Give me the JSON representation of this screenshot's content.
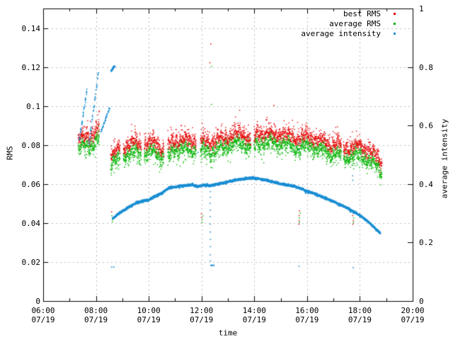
{
  "chart_data": {
    "type": "scatter",
    "title": "",
    "xlabel": "time",
    "ylabel": "RMS",
    "y2label": "average intensity",
    "grid": true,
    "colors": {
      "background": "#ffffff",
      "border": "#000000",
      "grid": "#b9b9b9",
      "text": "#000000",
      "best_rms": "#e60000",
      "average_rms": "#00b400",
      "average_intensity": "#1b8ed3"
    },
    "x_axis": {
      "date": "07/19",
      "range_hours": [
        6,
        20
      ],
      "major_ticks": [
        {
          "time": "06:00",
          "date": "07/19",
          "hour": 6
        },
        {
          "time": "08:00",
          "date": "07/19",
          "hour": 8
        },
        {
          "time": "10:00",
          "date": "07/19",
          "hour": 10
        },
        {
          "time": "12:00",
          "date": "07/19",
          "hour": 12
        },
        {
          "time": "14:00",
          "date": "07/19",
          "hour": 14
        },
        {
          "time": "16:00",
          "date": "07/19",
          "hour": 16
        },
        {
          "time": "18:00",
          "date": "07/19",
          "hour": 18
        },
        {
          "time": "20:00",
          "date": "07/19",
          "hour": 20
        }
      ],
      "minor_tick_hours": [
        7,
        9,
        11,
        13,
        15,
        17,
        19
      ]
    },
    "y_axis": {
      "label": "RMS",
      "min": 0,
      "max": 0.15,
      "ticks": [
        {
          "label": "0",
          "value": 0
        },
        {
          "label": "0.02",
          "value": 0.02
        },
        {
          "label": "0.04",
          "value": 0.04
        },
        {
          "label": "0.06",
          "value": 0.06
        },
        {
          "label": "0.08",
          "value": 0.08
        },
        {
          "label": "0.1",
          "value": 0.1
        },
        {
          "label": "0.12",
          "value": 0.12
        },
        {
          "label": "0.14",
          "value": 0.14
        }
      ]
    },
    "y2_axis": {
      "label": "average intensity",
      "min": 0,
      "max": 1,
      "ticks": [
        {
          "label": "1",
          "value": 1
        },
        {
          "label": "0.8",
          "value": 0.8
        },
        {
          "label": "0.6",
          "value": 0.6
        },
        {
          "label": "0.4",
          "value": 0.4
        },
        {
          "label": "0.2",
          "value": 0.2
        },
        {
          "label": "0",
          "value": 0
        }
      ]
    },
    "legend": [
      {
        "label": "best RMS",
        "series": "best_rms",
        "color": "#e60000"
      },
      {
        "label": "average RMS",
        "series": "average_rms",
        "color": "#00b400"
      },
      {
        "label": "average intensity",
        "series": "average_intensity",
        "color": "#1b8ed3"
      }
    ],
    "series": {
      "rms_band": {
        "axis": "y1",
        "red_offset": 0.0046,
        "spread": 0.0032,
        "segments": [
          [
            7.33,
            8.13
          ],
          [
            8.56,
            8.92
          ],
          [
            9.04,
            9.72
          ],
          [
            9.83,
            10.58
          ],
          [
            10.72,
            11.8
          ],
          [
            11.96,
            13.87
          ],
          [
            13.99,
            17.3
          ],
          [
            17.38,
            18.84
          ]
        ],
        "green_mean_anchors": [
          [
            7.35,
            0.0785
          ],
          [
            7.7,
            0.0795
          ],
          [
            7.95,
            0.081
          ],
          [
            8.12,
            0.0858
          ],
          [
            8.56,
            0.0712
          ],
          [
            8.8,
            0.0722
          ],
          [
            9.0,
            0.0735
          ],
          [
            9.2,
            0.0752
          ],
          [
            9.5,
            0.0768
          ],
          [
            9.75,
            0.0742
          ],
          [
            9.9,
            0.0752
          ],
          [
            10.15,
            0.0775
          ],
          [
            10.45,
            0.0742
          ],
          [
            10.65,
            0.0728
          ],
          [
            10.9,
            0.0772
          ],
          [
            11.2,
            0.0782
          ],
          [
            11.5,
            0.0772
          ],
          [
            11.8,
            0.0778
          ],
          [
            12.1,
            0.0772
          ],
          [
            12.4,
            0.0762
          ],
          [
            12.7,
            0.0782
          ],
          [
            13.0,
            0.0792
          ],
          [
            13.3,
            0.0812
          ],
          [
            13.6,
            0.0802
          ],
          [
            13.9,
            0.0788
          ],
          [
            14.2,
            0.0812
          ],
          [
            14.5,
            0.0818
          ],
          [
            14.8,
            0.0802
          ],
          [
            15.1,
            0.0812
          ],
          [
            15.4,
            0.0792
          ],
          [
            15.7,
            0.0782
          ],
          [
            16.0,
            0.0798
          ],
          [
            16.3,
            0.0785
          ],
          [
            16.6,
            0.0772
          ],
          [
            16.9,
            0.0752
          ],
          [
            17.15,
            0.0762
          ],
          [
            17.45,
            0.0735
          ],
          [
            17.7,
            0.0742
          ],
          [
            18.0,
            0.0752
          ],
          [
            18.2,
            0.0732
          ],
          [
            18.45,
            0.0712
          ],
          [
            18.65,
            0.0692
          ],
          [
            18.83,
            0.0662
          ]
        ]
      },
      "intensity_arc": {
        "axis": "y2",
        "anchors": [
          [
            8.63,
            0.282
          ],
          [
            8.8,
            0.295
          ],
          [
            9.0,
            0.307
          ],
          [
            9.25,
            0.321
          ],
          [
            9.5,
            0.334
          ],
          [
            9.75,
            0.341
          ],
          [
            10.0,
            0.346
          ],
          [
            10.2,
            0.356
          ],
          [
            10.5,
            0.369
          ],
          [
            10.75,
            0.386
          ],
          [
            11.0,
            0.39
          ],
          [
            11.3,
            0.394
          ],
          [
            11.6,
            0.398
          ],
          [
            11.85,
            0.392
          ],
          [
            12.1,
            0.396
          ],
          [
            12.35,
            0.395
          ],
          [
            12.6,
            0.4
          ],
          [
            12.85,
            0.404
          ],
          [
            13.1,
            0.41
          ],
          [
            13.4,
            0.415
          ],
          [
            13.7,
            0.419
          ],
          [
            13.95,
            0.421
          ],
          [
            14.2,
            0.417
          ],
          [
            14.5,
            0.412
          ],
          [
            14.8,
            0.405
          ],
          [
            15.1,
            0.399
          ],
          [
            15.4,
            0.395
          ],
          [
            15.7,
            0.387
          ],
          [
            16.0,
            0.376
          ],
          [
            16.3,
            0.366
          ],
          [
            16.6,
            0.355
          ],
          [
            16.9,
            0.344
          ],
          [
            17.2,
            0.331
          ],
          [
            17.5,
            0.319
          ],
          [
            17.8,
            0.304
          ],
          [
            18.1,
            0.286
          ],
          [
            18.35,
            0.268
          ],
          [
            18.6,
            0.247
          ],
          [
            18.78,
            0.231
          ]
        ]
      },
      "intensity_streaks": [
        {
          "from": [
            7.37,
            0.55
          ],
          "to": [
            7.66,
            0.721
          ]
        },
        {
          "from": [
            7.74,
            0.538
          ],
          "to": [
            8.09,
            0.78
          ]
        },
        {
          "from": [
            8.2,
            0.581
          ],
          "to": [
            8.52,
            0.661
          ]
        },
        {
          "from": [
            8.57,
            0.787
          ],
          "to": [
            8.71,
            0.804
          ]
        }
      ],
      "intensity_extra_points": [
        [
          8.6,
          0.116
        ],
        [
          8.68,
          0.116
        ],
        [
          11.87,
          0.508
        ]
      ],
      "intensity_dash": {
        "from_hour": 12.33,
        "to_hour": 12.49,
        "value": 0.122
      },
      "events": [
        {
          "hour": 8.585,
          "red": [
            0.0457
          ],
          "green": [
            0.0437,
            0.0417,
            0.0406
          ],
          "blue_y2": []
        },
        {
          "hour": 12.01,
          "red": [
            0.0447,
            0.0428
          ],
          "green": [
            0.0437,
            0.0417,
            0.0402
          ],
          "blue_y2": []
        },
        {
          "hour": 12.33,
          "red": [
            0.1318,
            0.1222
          ],
          "green": [
            0.1202,
            0.1008
          ],
          "blue_y2": [
            0.374,
            0.355,
            0.334,
            0.311,
            0.289,
            0.263,
            0.236,
            0.211,
            0.186,
            0.158,
            0.137
          ]
        },
        {
          "hour": 15.695,
          "red": [
            0.0462,
            0.0438,
            0.0412,
            0.0394
          ],
          "green": [
            0.0451,
            0.0426,
            0.0403
          ],
          "blue_y2": [
            0.54,
            0.517,
            0.119
          ]
        },
        {
          "hour": 17.735,
          "red": [
            0.0462,
            0.0438,
            0.0412,
            0.0394
          ],
          "green": [
            0.0451,
            0.0426,
            0.0403
          ],
          "blue_y2": [
            0.428,
            0.413,
            0.114
          ]
        },
        {
          "hour": 14.77,
          "red": [
            0.1003
          ],
          "green": [],
          "blue_y2": []
        }
      ]
    }
  }
}
